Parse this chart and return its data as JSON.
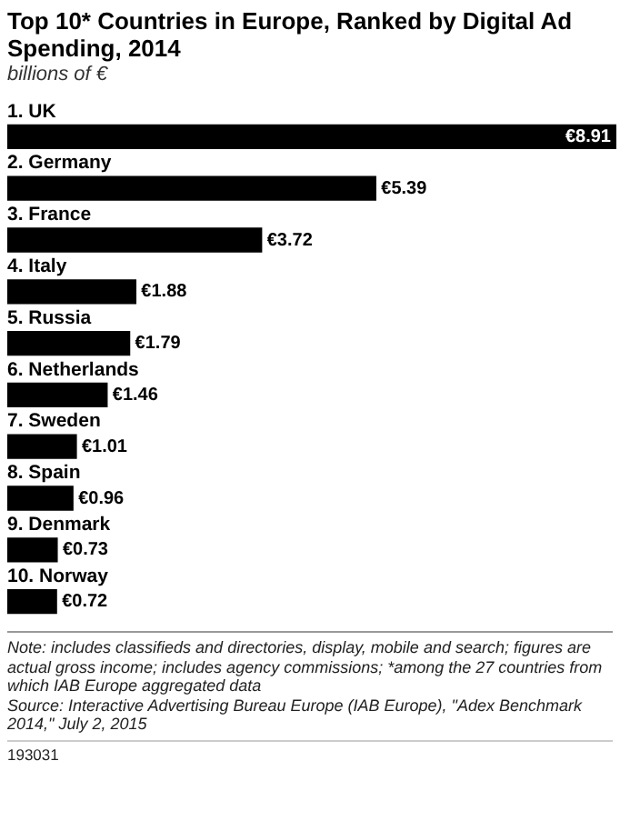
{
  "chart_data": {
    "type": "bar",
    "orientation": "horizontal",
    "title": "Top 10* Countries in Europe, Ranked by Digital Ad Spending, 2014",
    "subtitle": "billions of €",
    "categories": [
      "1. UK",
      "2. Germany",
      "3. France",
      "4. Italy",
      "5. Russia",
      "6. Netherlands",
      "7. Sweden",
      "8. Spain",
      "9. Denmark",
      "10. Norway"
    ],
    "values": [
      8.91,
      5.39,
      3.72,
      1.88,
      1.79,
      1.46,
      1.01,
      0.96,
      0.73,
      0.72
    ],
    "value_labels": [
      "€8.91",
      "€5.39",
      "€3.72",
      "€1.88",
      "€1.79",
      "€1.46",
      "€1.01",
      "€0.96",
      "€0.73",
      "€0.72"
    ],
    "color": "#000000",
    "annotations": [
      "Note: includes classifieds and directories, display, mobile and search; figures are actual gross income; includes agency commissions; *among the 27 countries from which IAB Europe aggregated data",
      "Source: Interactive Advertising Bureau Europe (IAB Europe), \"Adex Benchmark 2014,\" July 2, 2015",
      "193031"
    ]
  }
}
